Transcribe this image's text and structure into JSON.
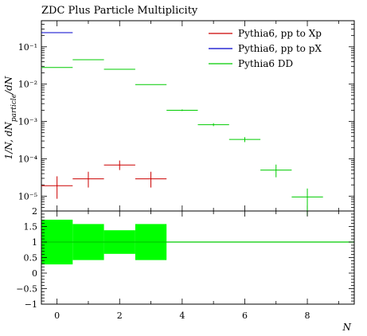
{
  "chart_data": [
    {
      "type": "scatter",
      "title": "ZDC Plus Particle Multiplicity",
      "xlabel": "N",
      "ylabel": "1/N, dN_particle/dN",
      "ylabel_parts": {
        "main": "1/N, dN",
        "sub": "particle",
        "tail": "/dN"
      },
      "yscale": "log",
      "xlim": [
        -0.5,
        9.5
      ],
      "ylim": [
        4e-06,
        0.5
      ],
      "yticks": [
        {
          "value": 0.1,
          "label": "10⁻¹"
        },
        {
          "value": 0.01,
          "label": "10⁻²"
        },
        {
          "value": 0.001,
          "label": "10⁻³"
        },
        {
          "value": 0.0001,
          "label": "10⁻⁴"
        },
        {
          "value": 1e-05,
          "label": "10⁻⁵"
        }
      ],
      "legend_position": "top-right",
      "series": [
        {
          "name": "Pythia6, pp to Xp",
          "color": "#cc0000",
          "points": [
            {
              "x": 0,
              "xerr": 0.5,
              "y": 1.9e-05,
              "ylo": 8.5e-06,
              "yhi": 3.4e-05
            },
            {
              "x": 1,
              "xerr": 0.5,
              "y": 2.9e-05,
              "ylo": 1.7e-05,
              "yhi": 4.5e-05
            },
            {
              "x": 2,
              "xerr": 0.5,
              "y": 6.8e-05,
              "ylo": 5e-05,
              "yhi": 9e-05
            },
            {
              "x": 3,
              "xerr": 0.5,
              "y": 2.9e-05,
              "ylo": 1.7e-05,
              "yhi": 4.5e-05
            }
          ]
        },
        {
          "name": "Pythia6, pp to pX",
          "color": "#0000cc",
          "points": [
            {
              "x": 0,
              "xerr": 0.5,
              "y": 0.24,
              "ylo": 0.24,
              "yhi": 0.24
            }
          ]
        },
        {
          "name": "Pythia6 DD",
          "color": "#00cc00",
          "points": [
            {
              "x": 0,
              "xerr": 0.5,
              "y": 0.028,
              "ylo": 0.028,
              "yhi": 0.028
            },
            {
              "x": 1,
              "xerr": 0.5,
              "y": 0.045,
              "ylo": 0.045,
              "yhi": 0.045
            },
            {
              "x": 2,
              "xerr": 0.5,
              "y": 0.025,
              "ylo": 0.025,
              "yhi": 0.025
            },
            {
              "x": 3,
              "xerr": 0.5,
              "y": 0.0097,
              "ylo": 0.0097,
              "yhi": 0.0097
            },
            {
              "x": 4,
              "xerr": 0.5,
              "y": 0.002,
              "ylo": 0.0019,
              "yhi": 0.0021
            },
            {
              "x": 5,
              "xerr": 0.5,
              "y": 0.00082,
              "ylo": 0.00075,
              "yhi": 0.0009
            },
            {
              "x": 6,
              "xerr": 0.5,
              "y": 0.00033,
              "ylo": 0.00028,
              "yhi": 0.00038
            },
            {
              "x": 7,
              "xerr": 0.5,
              "y": 5e-05,
              "ylo": 3.2e-05,
              "yhi": 7e-05
            },
            {
              "x": 8,
              "xerr": 0.5,
              "y": 9.5e-06,
              "ylo": 3e-06,
              "yhi": 1.6e-05
            }
          ]
        }
      ]
    },
    {
      "type": "area",
      "xlabel": "N",
      "ylabel": "",
      "xlim": [
        -0.5,
        9.5
      ],
      "ylim": [
        -1,
        2
      ],
      "xticks": [
        0,
        2,
        4,
        6,
        8
      ],
      "xtick_labels": [
        "0",
        "2",
        "4",
        "6",
        "8"
      ],
      "yticks": [
        -1,
        -0.5,
        0,
        0.5,
        1,
        1.5,
        2
      ],
      "ytick_labels": [
        "−1",
        "−0.5",
        "0",
        "0.5",
        "1",
        "1.5",
        "2"
      ],
      "reference_line": {
        "y": 1,
        "color": "#00cc00"
      },
      "bands": [
        {
          "x0": -0.5,
          "x1": 0.5,
          "lo": 0.28,
          "hi": 1.72
        },
        {
          "x0": 0.5,
          "x1": 1.5,
          "lo": 0.42,
          "hi": 1.58
        },
        {
          "x0": 1.5,
          "x1": 2.5,
          "lo": 0.62,
          "hi": 1.38
        },
        {
          "x0": 2.5,
          "x1": 3.5,
          "lo": 0.42,
          "hi": 1.58
        }
      ],
      "band_color": "#00ff00"
    }
  ]
}
